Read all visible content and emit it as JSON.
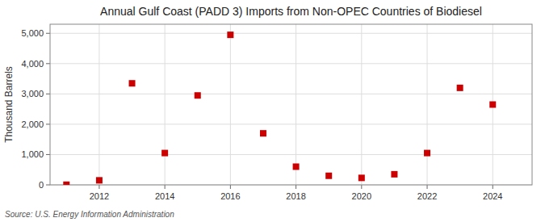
{
  "chart_data": {
    "type": "scatter",
    "title": "Annual Gulf Coast (PADD 3) Imports from Non-OPEC Countries of Biodiesel",
    "ylabel": "Thousand Barrels",
    "source": "Source: U.S. Energy Information Administration",
    "x": [
      2011,
      2012,
      2013,
      2014,
      2015,
      2016,
      2017,
      2018,
      2019,
      2020,
      2021,
      2022,
      2023,
      2024
    ],
    "values": [
      5,
      150,
      3350,
      1050,
      2950,
      4950,
      1700,
      600,
      300,
      230,
      350,
      1050,
      3200,
      2650
    ],
    "color": "#cc0000",
    "marker": "square",
    "xlim": [
      2010.5,
      2025.2
    ],
    "ylim": [
      0,
      5300
    ],
    "xticks": [
      2012,
      2014,
      2016,
      2018,
      2020,
      2022,
      2024
    ],
    "yticks": [
      0,
      {
        "value": 1000,
        "label": "1,000"
      },
      {
        "value": 2000,
        "label": "2,000"
      },
      {
        "value": 3000,
        "label": "3,000"
      },
      {
        "value": 4000,
        "label": "4,000"
      },
      {
        "value": 5000,
        "label": "5,000"
      }
    ],
    "grid": true
  }
}
